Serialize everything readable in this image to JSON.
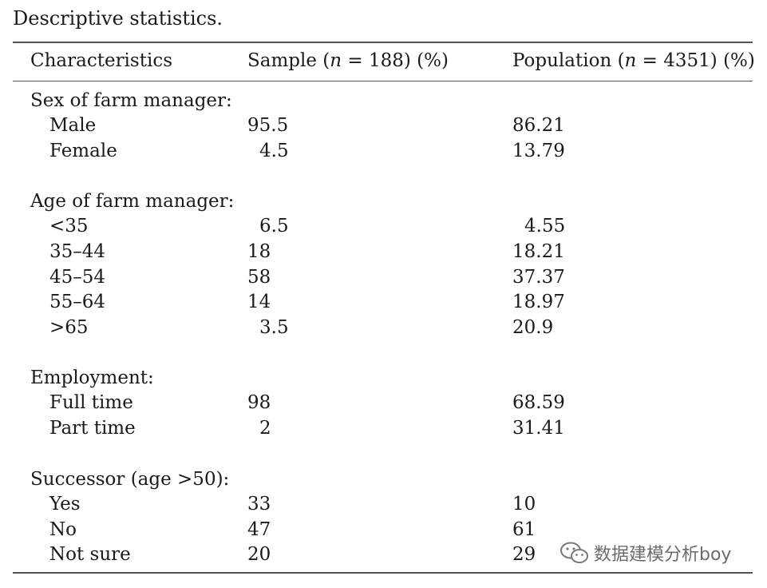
{
  "caption": "Descriptive statistics.",
  "columns": {
    "characteristics": "Characteristics",
    "sample_prefix": "Sample (",
    "sample_n": "n",
    "sample_suffix": " = 188) (%)",
    "population_prefix": "Population (",
    "population_n": "n",
    "population_suffix": " = 4351) (%)"
  },
  "groups": [
    {
      "heading": "Sex of farm manager:",
      "rows": [
        {
          "label": "Male",
          "sample": "95.5",
          "population": "86.21"
        },
        {
          "label": "Female",
          "sample": "4.5",
          "population": "13.79"
        }
      ]
    },
    {
      "heading": "Age of farm manager:",
      "rows": [
        {
          "label": "<35",
          "sample": "6.5",
          "population": "4.55"
        },
        {
          "label": "35–44",
          "sample": "18",
          "population": "18.21"
        },
        {
          "label": "45–54",
          "sample": "58",
          "population": "37.37"
        },
        {
          "label": "55–64",
          "sample": "14",
          "population": "18.97"
        },
        {
          "label": ">65",
          "sample": "3.5",
          "population": "20.9"
        }
      ]
    },
    {
      "heading": "Employment:",
      "rows": [
        {
          "label": "Full time",
          "sample": "98",
          "population": "68.59"
        },
        {
          "label": "Part time",
          "sample": "2",
          "population": "31.41"
        }
      ]
    },
    {
      "heading": "Successor (age >50):",
      "rows": [
        {
          "label": "Yes",
          "sample": "33",
          "population": "10"
        },
        {
          "label": "No",
          "sample": "47",
          "population": "61"
        },
        {
          "label": "Not sure",
          "sample": "20",
          "population": "29"
        }
      ]
    }
  ],
  "watermark": {
    "text": "数据建模分析boy",
    "icon": "wechat-icon"
  }
}
